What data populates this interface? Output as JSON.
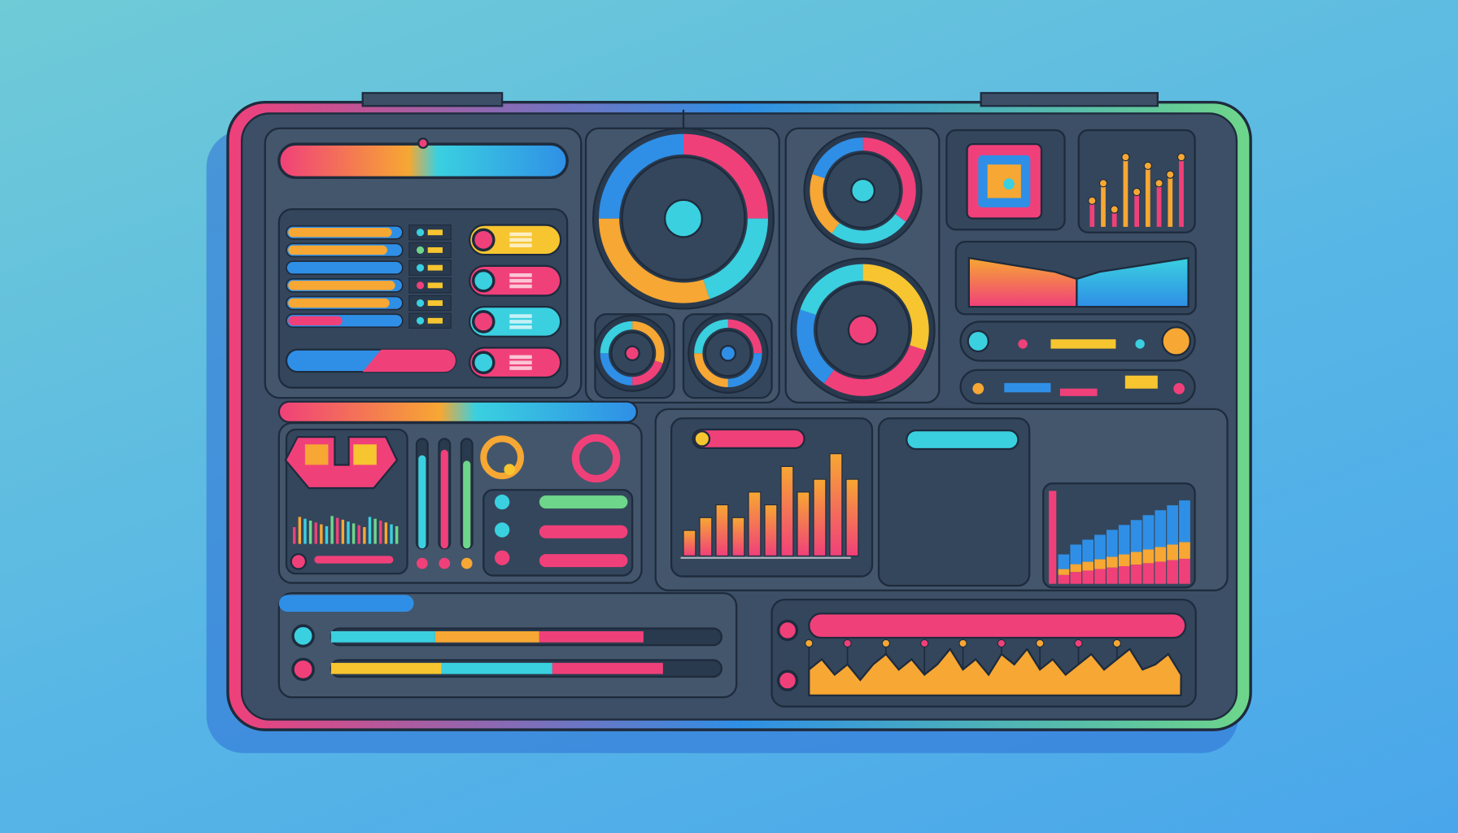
{
  "colors": {
    "background_top": "#6fcbd6",
    "background_bottom": "#4aa6ea",
    "frame": "#3c4f66",
    "panel": "#43566c",
    "panel_dark": "#34465c",
    "outline": "#1e2b3d",
    "pink": "#f0407a",
    "orange": "#f7a733",
    "yellow": "#f6c530",
    "cyan": "#3ad0e0",
    "blue": "#2f8fe6",
    "green": "#6ed68a",
    "red": "#e8344f"
  },
  "list_panel": {
    "rows": [
      {
        "level": 0.92,
        "color": "#f7a733",
        "dot": "#3ad0e0"
      },
      {
        "level": 0.88,
        "color": "#f7a733",
        "dot": "#6ed68a"
      },
      {
        "level": 0.62,
        "color": "#2f8fe6",
        "dot": "#3ad0e0"
      },
      {
        "level": 0.95,
        "color": "#f7a733",
        "dot": "#f0407a"
      },
      {
        "level": 0.9,
        "color": "#f7a733",
        "dot": "#3ad0e0"
      },
      {
        "level": 0.48,
        "color": "#f0407a",
        "dot": "#3ad0e0"
      }
    ],
    "toggles": [
      {
        "knob": "#f0407a",
        "pill": "#f6c530"
      },
      {
        "knob": "#3ad0e0",
        "pill": "#f0407a"
      },
      {
        "knob": "#f0407a",
        "pill": "#3ad0e0"
      },
      {
        "knob": "#3ad0e0",
        "pill": "#f0407a"
      }
    ]
  },
  "gauges": [
    {
      "segments": [
        0.25,
        0.2,
        0.3,
        0.25
      ],
      "colors": [
        "#f0407a",
        "#3ad0e0",
        "#f7a733",
        "#2f8fe6"
      ]
    },
    {
      "segments": [
        0.3,
        0.2,
        0.25,
        0.25
      ],
      "colors": [
        "#f7a733",
        "#f0407a",
        "#2f8fe6",
        "#3ad0e0"
      ]
    },
    {
      "segments": [
        0.25,
        0.25,
        0.25,
        0.25
      ],
      "colors": [
        "#f0407a",
        "#2f8fe6",
        "#f7a733",
        "#3ad0e0"
      ]
    },
    {
      "segments": [
        0.35,
        0.25,
        0.2,
        0.2
      ],
      "colors": [
        "#f0407a",
        "#3ad0e0",
        "#f7a733",
        "#2f8fe6"
      ]
    },
    {
      "segments": [
        0.3,
        0.3,
        0.2,
        0.2
      ],
      "colors": [
        "#f6c530",
        "#f0407a",
        "#2f8fe6",
        "#3ad0e0"
      ]
    },
    {
      "segments": [
        0.3,
        0.25,
        0.25,
        0.2
      ],
      "colors": [
        "#f7a733",
        "#f0407a",
        "#2f8fe6",
        "#3ad0e0"
      ]
    },
    {
      "segments": [
        0.3,
        0.3,
        0.2,
        0.2
      ],
      "colors": [
        "#f6c530",
        "#f7a733",
        "#f0407a",
        "#2f8fe6"
      ]
    }
  ],
  "mini_bar_chart": {
    "type": "bar",
    "values": [
      3,
      5,
      2,
      8,
      4,
      7,
      5,
      6,
      8
    ]
  },
  "main_bar_chart": {
    "type": "bar",
    "values": [
      2,
      3,
      4,
      3,
      5,
      4,
      7,
      5,
      6,
      8,
      6
    ]
  },
  "area_chart": {
    "type": "area",
    "left": [
      7,
      6.5,
      6,
      5.5,
      5,
      4
    ],
    "right": [
      4,
      5,
      5.5,
      6,
      6.5,
      7
    ]
  },
  "stacked_chart": {
    "type": "bar",
    "values": [
      3,
      4,
      4.5,
      5,
      5.5,
      6,
      6.5,
      7,
      7.5,
      8,
      8.5
    ]
  },
  "vertical_meters": [
    0.85,
    0.9,
    0.8
  ],
  "progress_bars": [
    {
      "level": 0.8,
      "segments": [
        "#3ad0e0",
        "#f7a733",
        "#f0407a"
      ]
    },
    {
      "level": 0.85,
      "segments": [
        "#f6c530",
        "#3ad0e0",
        "#f0407a"
      ]
    }
  ],
  "wave_chart": {
    "type": "area",
    "values": [
      5,
      7,
      4,
      6,
      3,
      6,
      8,
      5,
      7,
      4,
      6,
      9,
      5,
      7,
      4,
      8,
      6,
      9,
      5,
      7,
      4,
      6,
      8,
      5,
      7,
      9,
      5,
      6,
      8,
      4
    ]
  },
  "knobs": [
    "#3ad0e0",
    "#f0407a",
    "#f7a733"
  ]
}
